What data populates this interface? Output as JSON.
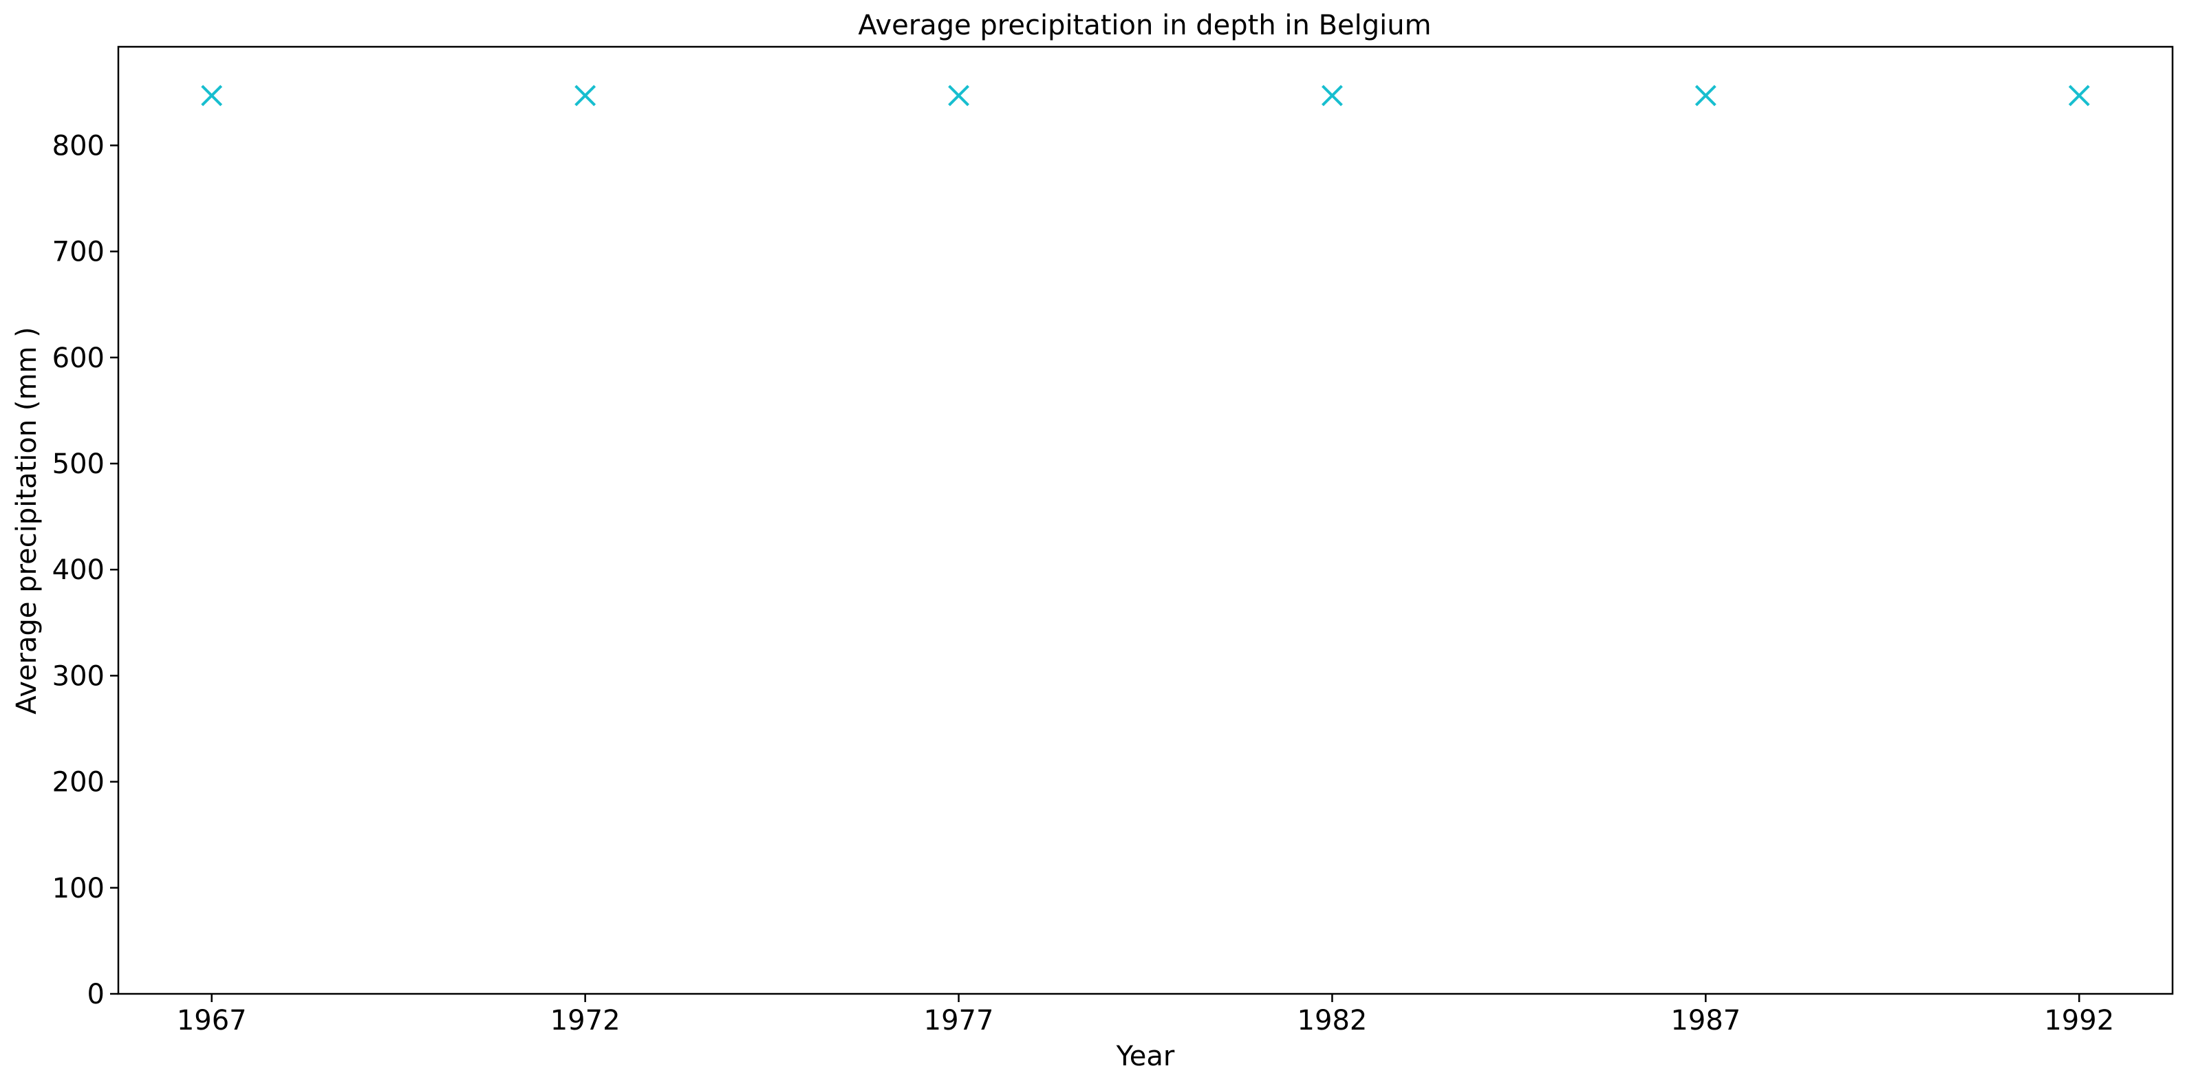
{
  "chart_data": {
    "type": "scatter",
    "title": "Average precipitation in depth in Belgium",
    "xlabel": "Year",
    "ylabel": "Average precipitation (mm )",
    "x": [
      1967,
      1972,
      1977,
      1982,
      1987,
      1992
    ],
    "y": [
      847,
      847,
      847,
      847,
      847,
      847
    ],
    "x_ticks": [
      "1967",
      "1972",
      "1977",
      "1982",
      "1987",
      "1992"
    ],
    "y_ticks": [
      "0",
      "100",
      "200",
      "300",
      "400",
      "500",
      "600",
      "700",
      "800"
    ],
    "ylim": [
      0,
      893
    ],
    "xlim": [
      1965.75,
      1993.25
    ],
    "marker": "x",
    "marker_color": "#17becf",
    "grid": false,
    "legend": "none"
  }
}
